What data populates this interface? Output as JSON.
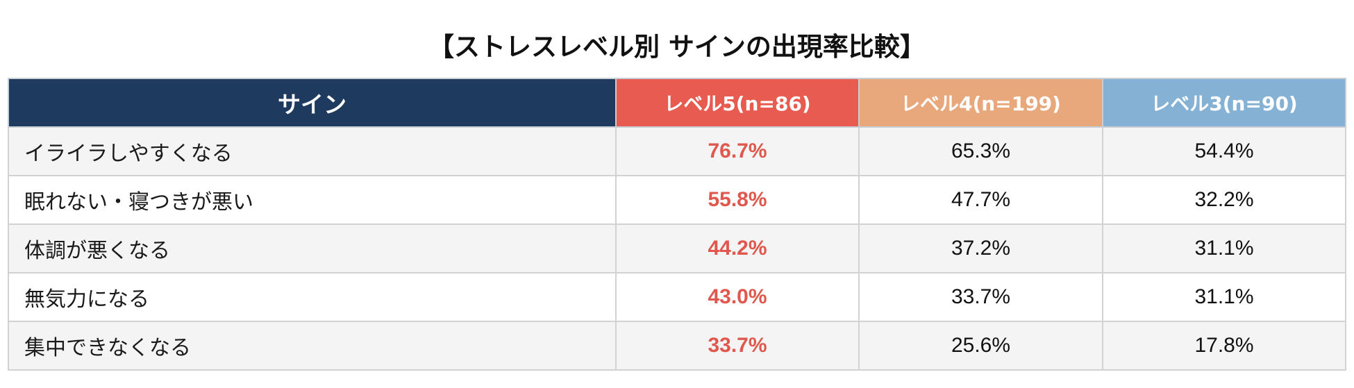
{
  "title": "【ストレスレベル別 サインの出現率比較】",
  "colors": {
    "header_sign": "#1f3a5f",
    "header_level5": "#e85b50",
    "header_level4": "#e8a87c",
    "header_level3": "#85b1d4",
    "highlight_text": "#e0574d",
    "row_alt": "#f4f4f4"
  },
  "table": {
    "headers": [
      "サイン",
      "レベル5(n=86)",
      "レベル4(n=199)",
      "レベル3(n=90)"
    ],
    "rows": [
      {
        "sign": "イライラしやすくなる",
        "level5": "76.7%",
        "level4": "65.3%",
        "level3": "54.4%"
      },
      {
        "sign": "眠れない・寝つきが悪い",
        "level5": "55.8%",
        "level4": "47.7%",
        "level3": "32.2%"
      },
      {
        "sign": "体調が悪くなる",
        "level5": "44.2%",
        "level4": "37.2%",
        "level3": "31.1%"
      },
      {
        "sign": "無気力になる",
        "level5": "43.0%",
        "level4": "33.7%",
        "level3": "31.1%"
      },
      {
        "sign": "集中できなくなる",
        "level5": "33.7%",
        "level4": "25.6%",
        "level3": "17.8%"
      }
    ]
  },
  "chart_data": {
    "type": "table",
    "title": "【ストレスレベル別 サインの出現率比較】",
    "categories": [
      "イライラしやすくなる",
      "眠れない・寝つきが悪い",
      "体調が悪くなる",
      "無気力になる",
      "集中できなくなる"
    ],
    "series": [
      {
        "name": "レベル5(n=86)",
        "values": [
          76.7,
          55.8,
          44.2,
          43.0,
          33.7
        ]
      },
      {
        "name": "レベル4(n=199)",
        "values": [
          65.3,
          47.7,
          37.2,
          33.7,
          25.6
        ]
      },
      {
        "name": "レベル3(n=90)",
        "values": [
          54.4,
          32.2,
          31.1,
          31.1,
          17.8
        ]
      }
    ],
    "unit": "%"
  }
}
